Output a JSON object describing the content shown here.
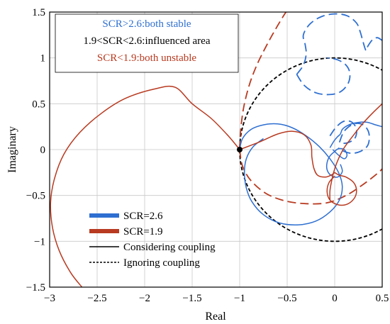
{
  "chart_data": {
    "type": "line",
    "xlabel": "Real",
    "ylabel": "Imaginary",
    "xlim": [
      -3,
      0.5
    ],
    "ylim": [
      -1.5,
      1.5
    ],
    "grid": true,
    "xticks": [
      {
        "v": -3,
        "label": "−3"
      },
      {
        "v": -2.5,
        "label": "−2.5"
      },
      {
        "v": -2,
        "label": "−2"
      },
      {
        "v": -1.5,
        "label": "−1.5"
      },
      {
        "v": -1,
        "label": "−1"
      },
      {
        "v": -0.5,
        "label": "−0.5"
      },
      {
        "v": 0,
        "label": "0"
      },
      {
        "v": 0.5,
        "label": "0.5"
      }
    ],
    "yticks": [
      {
        "v": 1.5,
        "label": "1.5"
      },
      {
        "v": 1,
        "label": "1"
      },
      {
        "v": 0.5,
        "label": "0.5"
      },
      {
        "v": 0,
        "label": "0"
      },
      {
        "v": -0.5,
        "label": "−0.5"
      },
      {
        "v": -1,
        "label": "−1"
      },
      {
        "v": -1.5,
        "label": "−1.5"
      }
    ],
    "critical_point": [
      -1,
      0
    ],
    "colors": {
      "blue": "#2e6fd1",
      "red": "#b83a20",
      "black": "#000000"
    },
    "annotations": [
      {
        "text": "SCR>2.6:both stable",
        "color": "#2e6fd1"
      },
      {
        "text": "1.9<SCR<2.6:influenced area",
        "color": "#000000"
      },
      {
        "text": "SCR<1.9:both unstable",
        "color": "#b83a20"
      }
    ],
    "legend": {
      "placement": "bottom-left",
      "entries": [
        {
          "label": "SCR=2.6",
          "color": "#2e6fd1",
          "style": "thick"
        },
        {
          "label": "SCR=1.9",
          "color": "#b83a20",
          "style": "thick"
        },
        {
          "label": "Considering coupling",
          "color": "#000000",
          "style": "solid"
        },
        {
          "label": "Ignoring coupling",
          "color": "#000000",
          "style": "dashed"
        }
      ]
    },
    "series": [
      {
        "color": "#000000",
        "dash": true,
        "shape": "circle",
        "center": [
          0,
          0
        ],
        "radius": 1
      },
      {
        "color": "#b83a20",
        "dash": true,
        "points": [
          [
            -1,
            0
          ],
          [
            -0.99,
            0.2
          ],
          [
            -0.96,
            0.45
          ],
          [
            -0.9,
            0.7
          ],
          [
            -0.82,
            0.92
          ],
          [
            -0.72,
            1.13
          ],
          [
            -0.63,
            1.3
          ],
          [
            -0.55,
            1.44
          ],
          [
            -0.5,
            1.52
          ]
        ]
      },
      {
        "color": "#b83a20",
        "dash": true,
        "points": [
          [
            -1,
            0
          ],
          [
            -0.97,
            -0.18
          ],
          [
            -0.88,
            -0.34
          ],
          [
            -0.72,
            -0.48
          ],
          [
            -0.52,
            -0.56
          ],
          [
            -0.3,
            -0.59
          ],
          [
            -0.08,
            -0.58
          ],
          [
            0.12,
            -0.5
          ],
          [
            0.3,
            -0.38
          ],
          [
            0.45,
            -0.26
          ],
          [
            0.5,
            -0.21
          ]
        ]
      },
      {
        "color": "#2e6fd1",
        "dash": true,
        "points": [
          [
            -0.4,
            0.82
          ],
          [
            -0.33,
            0.92
          ],
          [
            -0.3,
            1.04
          ],
          [
            -0.31,
            1.14
          ],
          [
            -0.33,
            1.25
          ],
          [
            -0.26,
            1.37
          ],
          [
            -0.14,
            1.45
          ],
          [
            0,
            1.48
          ],
          [
            0.13,
            1.46
          ],
          [
            0.23,
            1.38
          ],
          [
            0.27,
            1.28
          ],
          [
            0.3,
            1.17
          ],
          [
            0.33,
            1.08
          ],
          [
            0.35,
            1.13
          ],
          [
            0.4,
            1.2
          ],
          [
            0.45,
            1.22
          ],
          [
            0.5,
            1.19
          ]
        ]
      },
      {
        "color": "#2e6fd1",
        "dash": true,
        "points": [
          [
            -0.4,
            0.82
          ],
          [
            -0.32,
            0.7
          ],
          [
            -0.2,
            0.62
          ],
          [
            -0.06,
            0.6
          ],
          [
            0.06,
            0.63
          ],
          [
            0.14,
            0.72
          ],
          [
            0.16,
            0.83
          ],
          [
            0.12,
            0.92
          ],
          [
            0.03,
            0.98
          ],
          [
            -0.08,
            1.0
          ]
        ]
      },
      {
        "color": "#2e6fd1",
        "dash": true,
        "points": [
          [
            -0.05,
            0.15
          ],
          [
            0.02,
            0.25
          ],
          [
            0.1,
            0.31
          ],
          [
            0.18,
            0.3
          ],
          [
            0.23,
            0.22
          ],
          [
            0.21,
            0.12
          ],
          [
            0.12,
            0.07
          ],
          [
            0.05,
            0.08
          ]
        ]
      },
      {
        "color": "#2e6fd1",
        "dash": true,
        "points": [
          [
            0.05,
            0.08
          ],
          [
            0.1,
            0.2
          ],
          [
            0.2,
            0.28
          ],
          [
            0.3,
            0.27
          ],
          [
            0.36,
            0.18
          ],
          [
            0.35,
            0.05
          ],
          [
            0.27,
            -0.02
          ],
          [
            0.18,
            -0.04
          ],
          [
            0.1,
            -0.02
          ],
          [
            0.04,
            0.02
          ]
        ]
      },
      {
        "color": "#2e6fd1",
        "dash": false,
        "points": [
          [
            -1,
            0
          ],
          [
            -0.97,
            0.12
          ],
          [
            -0.88,
            0.22
          ],
          [
            -0.75,
            0.27
          ],
          [
            -0.6,
            0.28
          ],
          [
            -0.45,
            0.24
          ],
          [
            -0.3,
            0.15
          ],
          [
            -0.16,
            0.03
          ],
          [
            -0.05,
            -0.1
          ],
          [
            0.04,
            -0.25
          ],
          [
            0.08,
            -0.4
          ],
          [
            0.05,
            -0.55
          ],
          [
            -0.05,
            -0.68
          ],
          [
            -0.2,
            -0.78
          ],
          [
            -0.38,
            -0.82
          ],
          [
            -0.58,
            -0.8
          ],
          [
            -0.75,
            -0.71
          ],
          [
            -0.87,
            -0.57
          ],
          [
            -0.93,
            -0.42
          ],
          [
            -0.95,
            -0.25
          ],
          [
            -0.93,
            -0.1
          ],
          [
            -0.86,
            0.03
          ],
          [
            -0.75,
            0.12
          ]
        ]
      },
      {
        "color": "#2e6fd1",
        "dash": false,
        "points": [
          [
            -0.02,
            0
          ],
          [
            0.04,
            -0.06
          ],
          [
            0.1,
            -0.1
          ],
          [
            0.13,
            -0.06
          ],
          [
            0.1,
            0
          ],
          [
            0.04,
            0.01
          ],
          [
            0,
            -0.02
          ],
          [
            -0.05,
            -0.07
          ],
          [
            -0.08,
            -0.14
          ],
          [
            -0.08,
            -0.22
          ],
          [
            -0.04,
            -0.28
          ],
          [
            0.03,
            -0.3
          ],
          [
            0.08,
            -0.24
          ],
          [
            0.06,
            -0.16
          ]
        ]
      },
      {
        "color": "#2e6fd1",
        "dash": false,
        "points": [
          [
            -0.05,
            0.02
          ],
          [
            -0.01,
            0.09
          ],
          [
            0.03,
            0.14
          ],
          [
            0.06,
            0.17
          ],
          [
            0.08,
            0.22
          ],
          [
            0.13,
            0.26
          ],
          [
            0.21,
            0.29
          ],
          [
            0.33,
            0.3
          ],
          [
            0.43,
            0.27
          ],
          [
            0.5,
            0.25
          ]
        ]
      },
      {
        "color": "#b83a20",
        "dash": false,
        "points": [
          [
            -1,
            0
          ],
          [
            -1.12,
            0.15
          ],
          [
            -1.3,
            0.34
          ],
          [
            -1.5,
            0.5
          ],
          [
            -1.68,
            0.68
          ],
          [
            -1.9,
            0.66
          ],
          [
            -2.2,
            0.56
          ],
          [
            -2.45,
            0.4
          ],
          [
            -2.68,
            0.19
          ],
          [
            -2.85,
            -0.05
          ],
          [
            -2.95,
            -0.32
          ],
          [
            -2.99,
            -0.58
          ],
          [
            -2.97,
            -0.85
          ],
          [
            -2.9,
            -1.1
          ],
          [
            -2.78,
            -1.34
          ],
          [
            -2.66,
            -1.5
          ]
        ]
      },
      {
        "color": "#b83a20",
        "dash": false,
        "points": [
          [
            -1,
            0
          ],
          [
            -0.8,
            0.08
          ],
          [
            -0.6,
            0.17
          ],
          [
            -0.45,
            0.2
          ],
          [
            -0.32,
            0.16
          ],
          [
            -0.25,
            0.05
          ],
          [
            -0.24,
            -0.08
          ],
          [
            -0.22,
            -0.2
          ],
          [
            -0.18,
            -0.28
          ],
          [
            -0.1,
            -0.3
          ],
          [
            -0.04,
            -0.28
          ],
          [
            0,
            -0.25
          ]
        ]
      },
      {
        "color": "#b83a20",
        "dash": false,
        "points": [
          [
            0,
            -0.25
          ],
          [
            0.05,
            -0.28
          ],
          [
            0.12,
            -0.3
          ],
          [
            0.2,
            -0.36
          ],
          [
            0.23,
            -0.45
          ],
          [
            0.2,
            -0.54
          ],
          [
            0.12,
            -0.6
          ],
          [
            0.03,
            -0.6
          ],
          [
            -0.05,
            -0.55
          ],
          [
            -0.08,
            -0.46
          ],
          [
            -0.06,
            -0.36
          ],
          [
            0,
            -0.29
          ]
        ]
      },
      {
        "color": "#b83a20",
        "dash": false,
        "points": [
          [
            -0.05,
            -0.55
          ],
          [
            -0.05,
            -0.45
          ],
          [
            -0.03,
            -0.33
          ],
          [
            0,
            -0.21
          ],
          [
            0.04,
            -0.1
          ],
          [
            0.1,
            0.02
          ],
          [
            0.2,
            0.16
          ],
          [
            0.3,
            0.29
          ],
          [
            0.4,
            0.4
          ],
          [
            0.5,
            0.5
          ]
        ]
      }
    ]
  }
}
